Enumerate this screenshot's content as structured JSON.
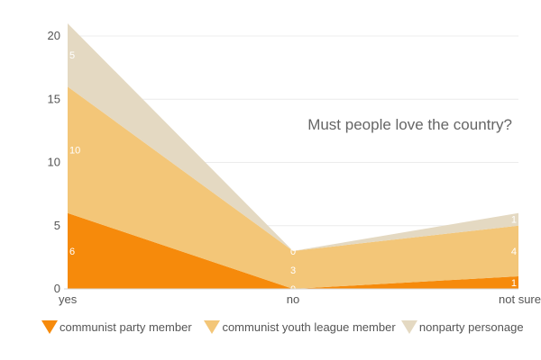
{
  "chart_data": {
    "type": "area",
    "stacked": true,
    "title": "Must people love the country?",
    "categories": [
      "yes",
      "no",
      "not sure"
    ],
    "series": [
      {
        "name": "communist party member",
        "values": [
          6,
          0,
          1
        ],
        "color": "#f68a0b"
      },
      {
        "name": "communist youth league member",
        "values": [
          10,
          3,
          4
        ],
        "color": "#f3c678"
      },
      {
        "name": "nonparty personage",
        "values": [
          5,
          0,
          1
        ],
        "color": "#e4d9c2"
      }
    ],
    "ylim": [
      0,
      20
    ],
    "yticks": [
      "0",
      "5",
      "10",
      "15",
      "20"
    ],
    "grid": true,
    "legend_position": "bottom-left"
  },
  "legend": {
    "items": [
      {
        "label": "communist party member",
        "color": "#f68a0b"
      },
      {
        "label": "communist youth league member",
        "color": "#f3c678"
      },
      {
        "label": "nonparty personage",
        "color": "#e4d9c2"
      }
    ]
  }
}
